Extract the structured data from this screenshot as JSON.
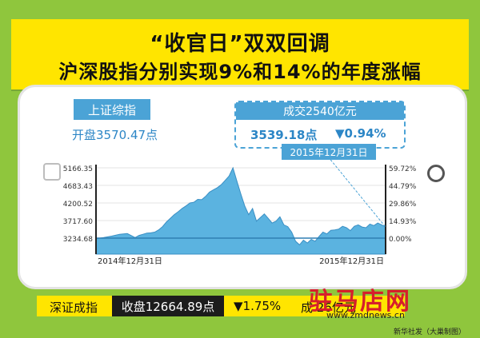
{
  "banner": {
    "line1": "“收官日”双双回调",
    "line2": "沪深股指分别实现9%和14%的年度涨幅"
  },
  "shanghai": {
    "label": "上证综指",
    "open_text": "开盘3570.47点",
    "volume_text": "成交2540亿元",
    "close_text": "3539.18点",
    "change_text": "▼0.94%",
    "date_flag": "2015年12月31日"
  },
  "shenzhen": {
    "label": "深证成指",
    "close_text": "收盘12664.89点",
    "change_text": "▼1.75%",
    "volume_text": "成    26亿元"
  },
  "watermark": {
    "logo": "驻马店网",
    "site": "www.zmdnews.cn"
  },
  "credit": "新华社发（大巢制图）",
  "colors": {
    "background": "#8fc63d",
    "banner": "#ffe500",
    "accent_blue": "#4ba3d6",
    "area_fill": "#5bb3e0",
    "baseline": "#2f7fb3"
  },
  "chart_data": {
    "type": "area",
    "title": "",
    "xlabel": "",
    "ylabel": "",
    "x_tick_labels": [
      "2014年12月31日",
      "2015年12月31日"
    ],
    "y_left_ticks": [
      "5166.35",
      "4683.43",
      "4200.52",
      "3717.60",
      "3234.68"
    ],
    "y_right_ticks": [
      "59.72%",
      "44.79%",
      "29.86%",
      "14.93%",
      "0.00%"
    ],
    "ylim": [
      3234.68,
      5166.35
    ],
    "baseline_value": 3234.68,
    "grid": true,
    "x": [
      0,
      10,
      20,
      30,
      40,
      50,
      55,
      60,
      65,
      70,
      75,
      80,
      85,
      90,
      95,
      100,
      105,
      110,
      115,
      120,
      125,
      130,
      135,
      140,
      145,
      150,
      155,
      160,
      165,
      170,
      175,
      180,
      185,
      190,
      195,
      200,
      205,
      210,
      215,
      220,
      225,
      230,
      235,
      240,
      245,
      250,
      255,
      260,
      265,
      270,
      275,
      280,
      285,
      290,
      295,
      300,
      305,
      310,
      315,
      320,
      325,
      330,
      335,
      340,
      345,
      350,
      355,
      360,
      365,
      370
    ],
    "values": [
      3220,
      3250,
      3290,
      3340,
      3360,
      3250,
      3310,
      3340,
      3370,
      3380,
      3400,
      3460,
      3550,
      3680,
      3780,
      3880,
      3960,
      4050,
      4120,
      4200,
      4220,
      4300,
      4290,
      4380,
      4500,
      4560,
      4620,
      4700,
      4820,
      4940,
      5166,
      4800,
      4450,
      4120,
      3880,
      4050,
      3700,
      3800,
      3900,
      3780,
      3650,
      3700,
      3820,
      3600,
      3550,
      3400,
      3150,
      3050,
      3180,
      3100,
      3200,
      3150,
      3280,
      3400,
      3350,
      3450,
      3460,
      3480,
      3560,
      3520,
      3440,
      3560,
      3600,
      3540,
      3520,
      3620,
      3580,
      3650,
      3600,
      3540
    ]
  }
}
